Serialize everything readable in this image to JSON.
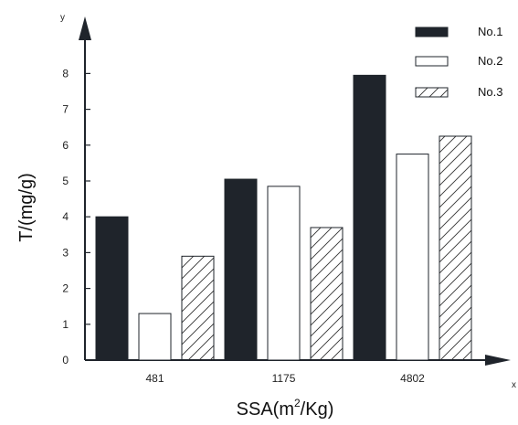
{
  "chart_data": {
    "type": "bar",
    "categories": [
      "481",
      "1175",
      "4802"
    ],
    "series": [
      {
        "name": "No.1",
        "values": [
          4.0,
          5.05,
          7.95
        ],
        "fill": "solid",
        "color": "#1f242b"
      },
      {
        "name": "No.2",
        "values": [
          1.3,
          4.85,
          5.75
        ],
        "fill": "empty",
        "color": "#ffffff"
      },
      {
        "name": "No.3",
        "values": [
          2.9,
          3.7,
          6.25
        ],
        "fill": "hatched",
        "color": "#ffffff"
      }
    ],
    "xlabel_main": "SSA(m",
    "xlabel_sup": "2",
    "xlabel_tail": "/Kg)",
    "ylabel": "T/(mg/g)",
    "x_axis_char": "x",
    "y_axis_char": "y",
    "yticks": [
      "0",
      "1",
      "2",
      "3",
      "4",
      "5",
      "6",
      "7",
      "8"
    ],
    "ylim": [
      0,
      8
    ],
    "grid": false,
    "legend_position": "top-right",
    "stroke_color": "#1f242b"
  }
}
